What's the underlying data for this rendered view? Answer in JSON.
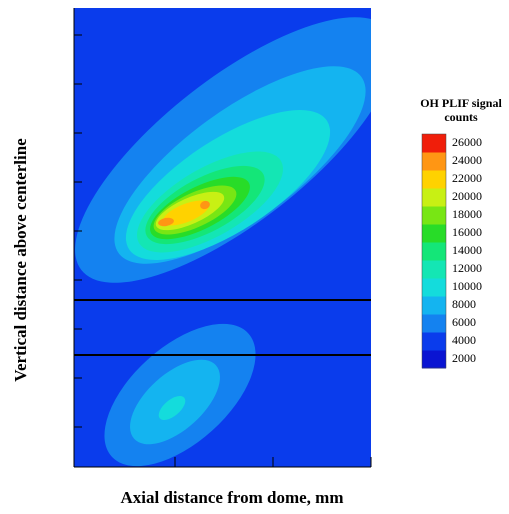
{
  "chart_data": {
    "type": "contour",
    "xlabel": "Axial distance from dome, mm",
    "ylabel": "Vertical distance above centerline",
    "colorbar_title": "OH PLIF signal counts",
    "levels": [
      2000,
      4000,
      6000,
      8000,
      10000,
      12000,
      14000,
      16000,
      18000,
      20000,
      22000,
      24000,
      26000
    ],
    "colors": [
      "#0a14d2",
      "#0a3cec",
      "#1482f0",
      "#14b4f0",
      "#14dcdc",
      "#14e6b4",
      "#14e678",
      "#28dc28",
      "#78e614",
      "#c8f014",
      "#ffd200",
      "#ff9614",
      "#f01e0a"
    ]
  }
}
